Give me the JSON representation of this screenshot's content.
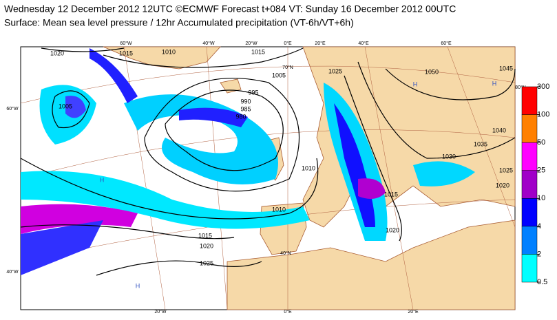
{
  "header": {
    "title": "Wednesday 12 December 2012 12UTC ©ECMWF Forecast t+084 VT: Sunday 16 December 2012 00UTC",
    "subtitle": "Surface: Mean sea level pressure / 12hr Accumulated precipitation (VT-6h/VT+6h)"
  },
  "colorbar": {
    "levels": [
      300,
      100,
      50,
      25,
      10,
      4,
      2,
      0.5
    ],
    "colors": [
      "#ff0000",
      "#ff8000",
      "#ff00ff",
      "#a000c8",
      "#0000ff",
      "#0080ff",
      "#00ffff"
    ]
  },
  "map": {
    "graticule_labels": [
      "60°W",
      "40°W",
      "20°W",
      "0°E",
      "20°E",
      "40°E",
      "60°E",
      "60°W",
      "40°W",
      "80°N",
      "70°N",
      "40°N",
      "20°W",
      "0°E",
      "20°E"
    ],
    "isobar_labels": [
      "1020",
      "1015",
      "1010",
      "1015",
      "1005",
      "995",
      "990",
      "985",
      "980",
      "1005",
      "1025",
      "1050",
      "1045",
      "1040",
      "1035",
      "1030",
      "1025",
      "1020",
      "1015",
      "1010",
      "1010",
      "1015",
      "1020",
      "1025",
      "1020"
    ],
    "pressure_centers": [
      "H",
      "H",
      "H",
      "H"
    ]
  }
}
